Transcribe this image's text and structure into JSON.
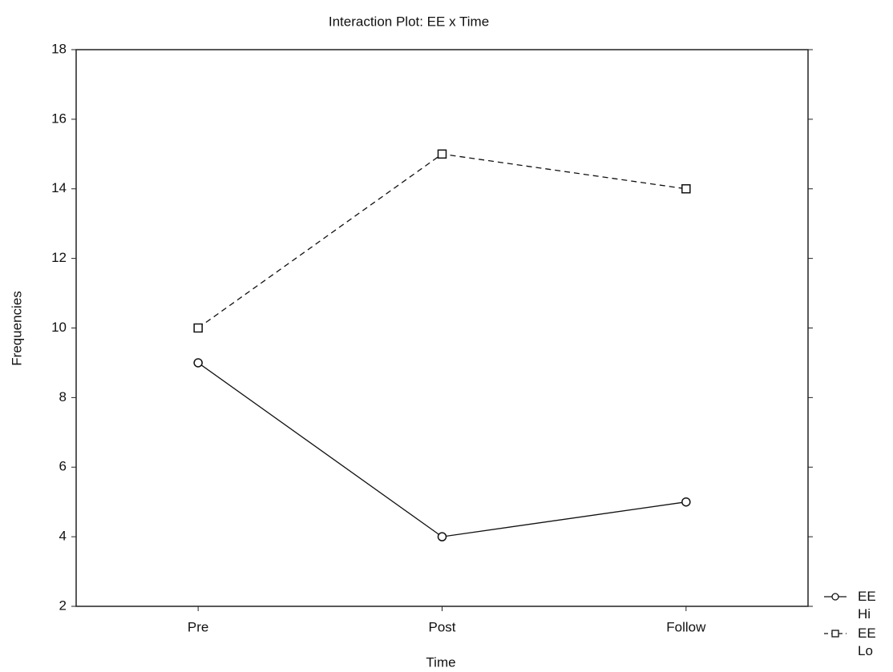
{
  "chart_data": {
    "type": "line",
    "title": "Interaction Plot: EE x Time",
    "x_label": "Time",
    "y_label": "Frequencies",
    "categories": [
      "Pre",
      "Post",
      "Follow"
    ],
    "series": [
      {
        "name": "EE Hi",
        "color": "#111111",
        "dash": "solid",
        "marker": "circle",
        "values": [
          9,
          4,
          5
        ]
      },
      {
        "name": "EE Lo",
        "color": "#111111",
        "dash": "dashed",
        "marker": "square",
        "values": [
          10,
          15,
          14
        ]
      }
    ],
    "ylim": [
      2,
      18
    ],
    "yticks": [
      2,
      4,
      6,
      8,
      10,
      12,
      14,
      16,
      18
    ]
  }
}
